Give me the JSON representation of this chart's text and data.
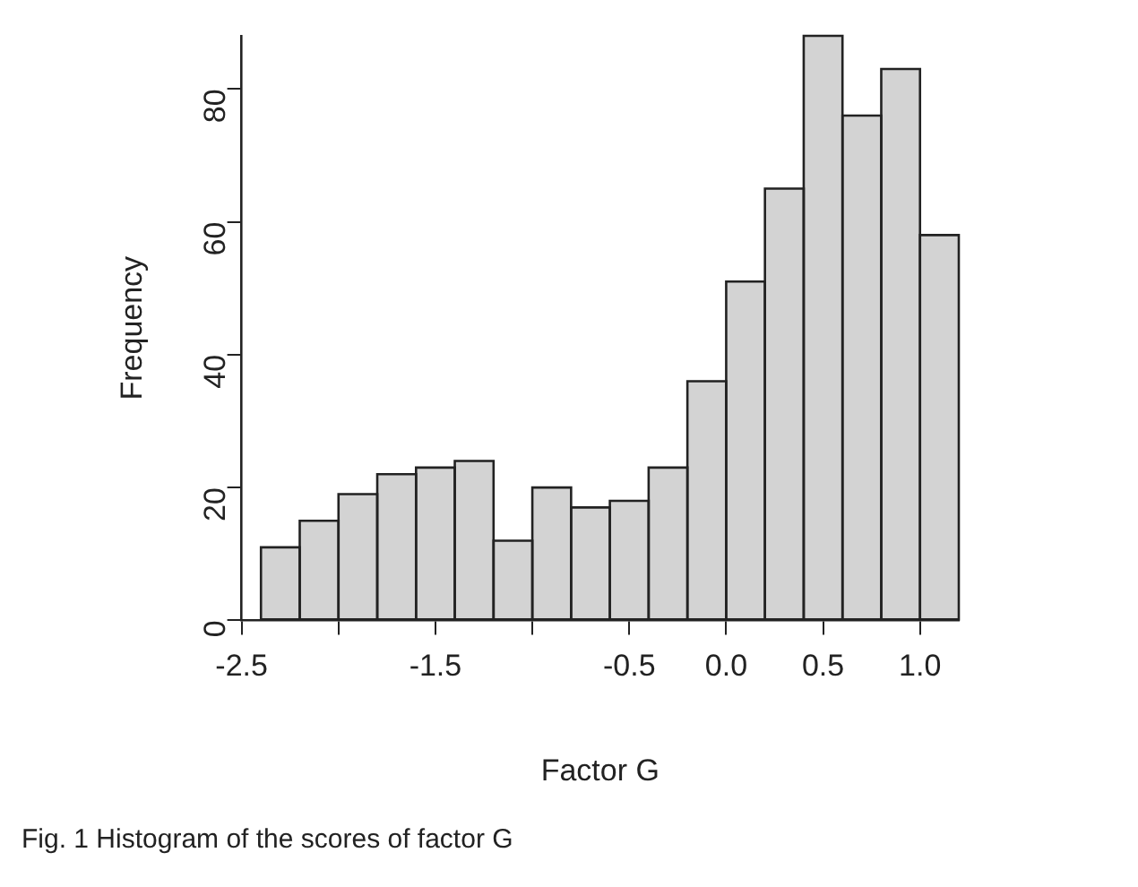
{
  "chart_data": {
    "type": "histogram",
    "xlabel": "Factor G",
    "ylabel": "Frequency",
    "bins": [
      -2.4,
      -2.2,
      -2.0,
      -1.8,
      -1.6,
      -1.4,
      -1.2,
      -1.0,
      -0.8,
      -0.6,
      -0.4,
      -0.2,
      0.0,
      0.2,
      0.4,
      0.6,
      0.8,
      1.0,
      1.2
    ],
    "values": [
      11,
      15,
      19,
      22,
      23,
      24,
      12,
      20,
      17,
      18,
      23,
      36,
      51,
      65,
      88,
      76,
      83,
      58
    ],
    "color": "#d3d3d3",
    "xlim": [
      -2.5,
      1.2
    ],
    "xticks": [
      -2.5,
      {
        "value": -2.0,
        "label": null
      },
      -1.5,
      {
        "value": -1.0,
        "label": null
      },
      -0.5,
      {
        "value": 0.0,
        "label": "0.0"
      },
      0.5,
      {
        "value": 1.0,
        "label": "1.0"
      }
    ],
    "ylim": [
      0,
      88
    ],
    "yticks": [
      0,
      20,
      40,
      60,
      80
    ],
    "grid": false,
    "legend": false,
    "annotations": [
      "Fig. 1 Histogram of the scores of factor G"
    ]
  }
}
